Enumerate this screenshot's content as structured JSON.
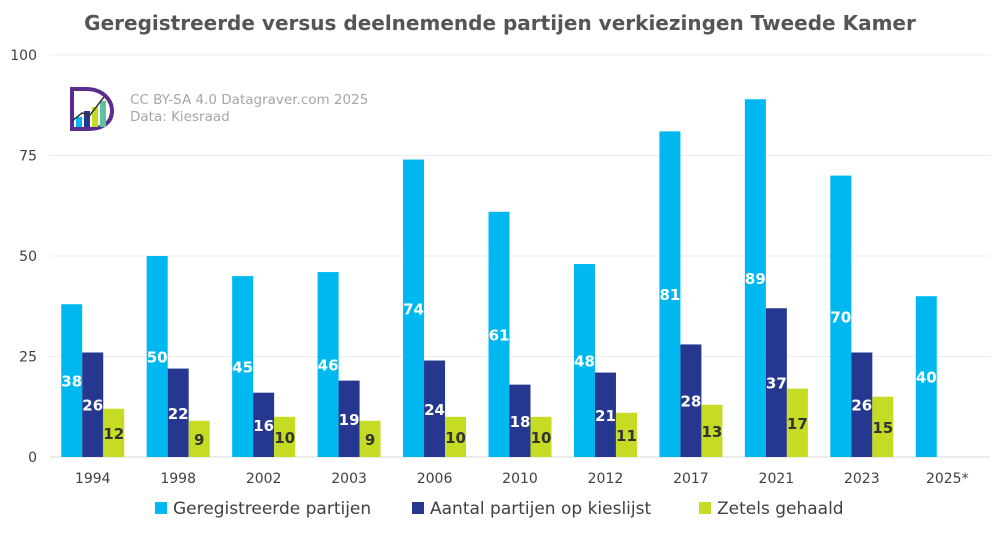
{
  "chart_data": {
    "type": "bar",
    "title": "Geregistreerde versus deelnemende partijen verkiezingen Tweede Kamer",
    "credit_line1": "CC BY-SA 4.0 Datagraver.com 2025",
    "credit_line2": "Data: Kiesraad",
    "categories": [
      "1994",
      "1998",
      "2002",
      "2003",
      "2006",
      "2010",
      "2012",
      "2017",
      "2021",
      "2023",
      "2025*"
    ],
    "ylim": [
      0,
      100
    ],
    "yticks": [
      0,
      25,
      50,
      75,
      100
    ],
    "grid": true,
    "legend_position": "bottom",
    "series": [
      {
        "name": "Geregistreerde partijen",
        "color": "#00b8f0",
        "label_style": "light",
        "values": [
          38,
          50,
          45,
          46,
          74,
          61,
          48,
          81,
          89,
          70,
          40
        ]
      },
      {
        "name": "Aantal partijen op kieslijst",
        "color": "#26378f",
        "label_style": "light",
        "values": [
          26,
          22,
          16,
          19,
          24,
          18,
          21,
          28,
          37,
          26,
          null
        ]
      },
      {
        "name": "Zetels gehaald",
        "color": "#c5db24",
        "label_style": "dark",
        "values": [
          12,
          9,
          10,
          9,
          10,
          10,
          11,
          13,
          17,
          15,
          null
        ]
      }
    ]
  }
}
